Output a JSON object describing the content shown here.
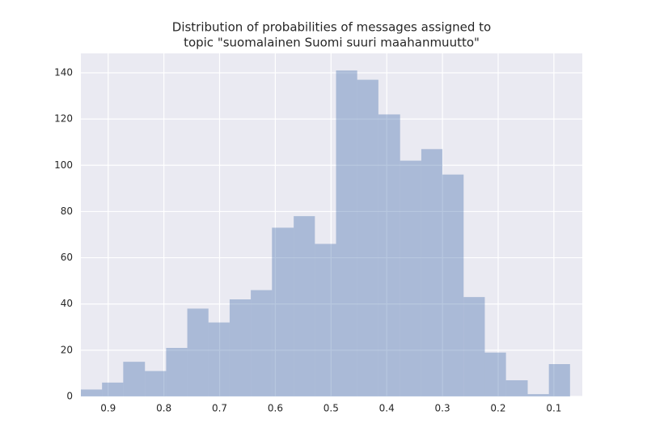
{
  "chart_data": {
    "type": "histogram",
    "title": [
      "Distribution of probabilities of messages assigned to",
      "topic \"suomalainen Suomi suuri maahanmuutto\""
    ],
    "bins": [
      0.949,
      0.911,
      0.873,
      0.834,
      0.796,
      0.758,
      0.72,
      0.682,
      0.644,
      0.606,
      0.567,
      0.529,
      0.491,
      0.453,
      0.415,
      0.376,
      0.338,
      0.3,
      0.262,
      0.224,
      0.186,
      0.147,
      0.109,
      0.071
    ],
    "counts": [
      3,
      6,
      15,
      11,
      21,
      38,
      32,
      42,
      46,
      73,
      78,
      66,
      141,
      137,
      122,
      102,
      107,
      96,
      43,
      19,
      7,
      1,
      14
    ],
    "color": "#4c72b0",
    "opacity": 0.4,
    "xlim": [
      0.949,
      0.049
    ],
    "xticks": [
      0.9,
      0.8,
      0.7,
      0.6,
      0.5,
      0.4,
      0.3,
      0.2,
      0.1
    ],
    "ylim": [
      0,
      148.4
    ],
    "yticks": [
      0,
      20,
      40,
      60,
      80,
      100,
      120,
      140
    ],
    "grid": true
  }
}
